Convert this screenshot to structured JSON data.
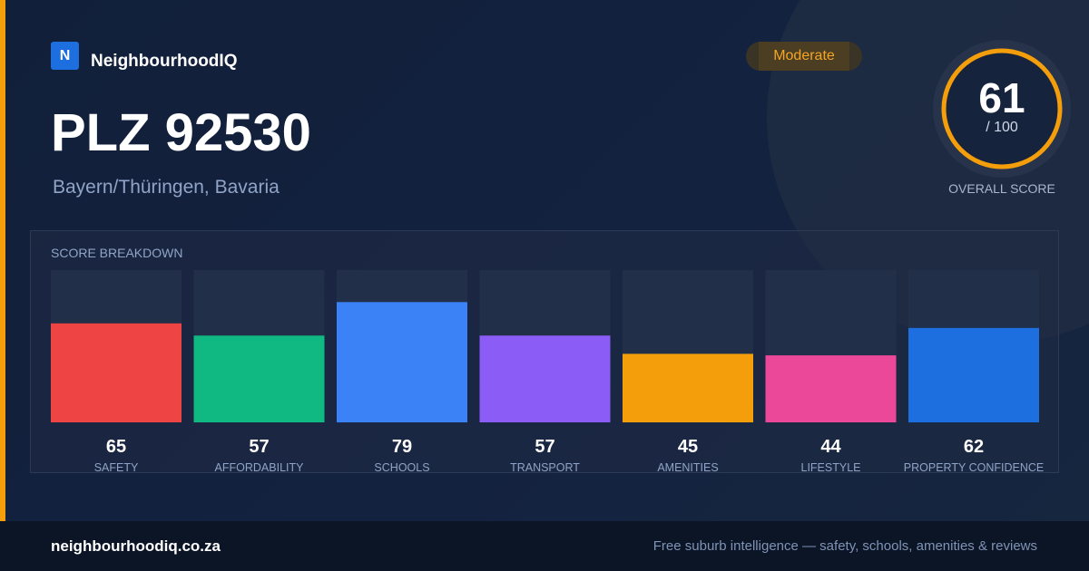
{
  "brand": {
    "logo_letter": "N",
    "name": "NeighbourhoodIQ",
    "colors": {
      "accent": "#f59e0b",
      "logo_bg": "#1d6fe0"
    }
  },
  "header": {
    "title": "PLZ 92530",
    "subtitle": "Bayern/Thüringen, Bavaria",
    "badge": "Moderate"
  },
  "overall_score": {
    "value": "61",
    "max_label": "/ 100",
    "caption": "OVERALL SCORE",
    "ring_color": "#f59e0b"
  },
  "breakdown": {
    "title": "SCORE BREAKDOWN"
  },
  "chart_data": {
    "type": "bar",
    "title": "SCORE BREAKDOWN",
    "categories": [
      "SAFETY",
      "AFFORDABILITY",
      "SCHOOLS",
      "TRANSPORT",
      "AMENITIES",
      "LIFESTYLE",
      "PROPERTY CONFIDENCE"
    ],
    "values": [
      65,
      57,
      79,
      57,
      45,
      44,
      62
    ],
    "colors": [
      "#ef4444",
      "#10b981",
      "#3b82f6",
      "#8b5cf6",
      "#f59e0b",
      "#ec4899",
      "#1d6fe0"
    ],
    "ylim": [
      0,
      100
    ],
    "grid": false,
    "legend": "none"
  },
  "footer": {
    "url": "neighbourhoodiq.co.za",
    "tagline": "Free suburb intelligence — safety, schools, amenities & reviews"
  }
}
